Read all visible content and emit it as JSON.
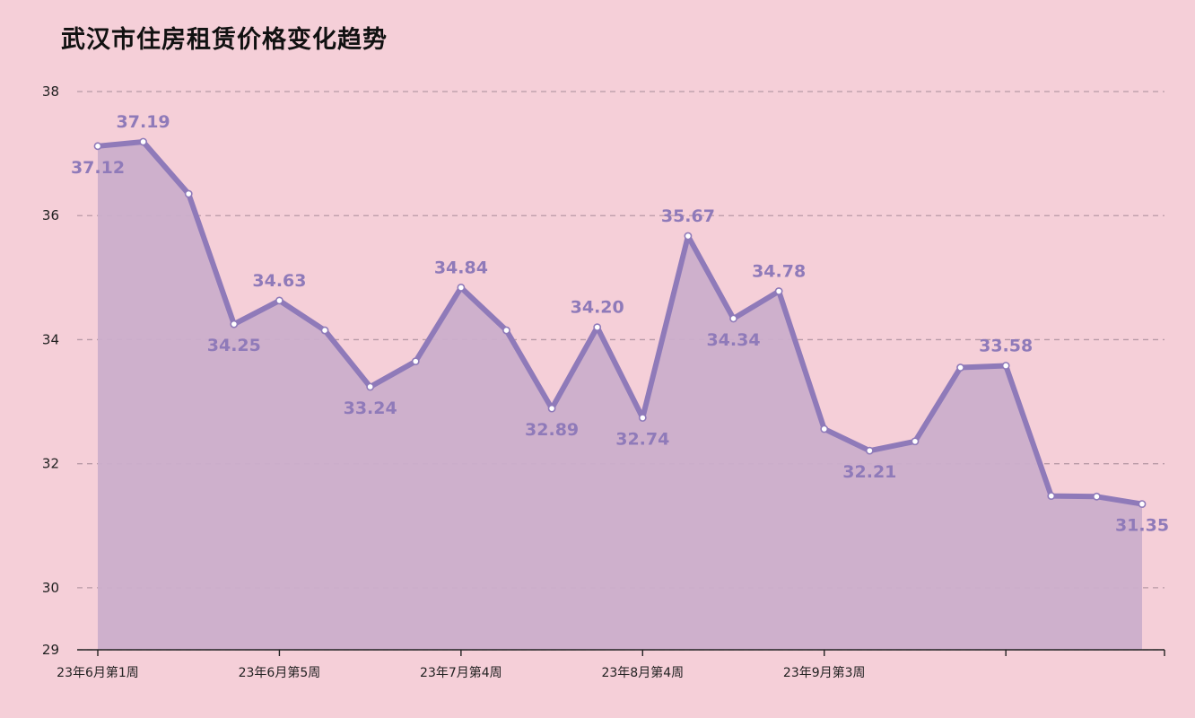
{
  "chart_data": {
    "type": "area",
    "title": "武汉市住房租赁价格变化趋势",
    "xlabel": "",
    "ylabel": "",
    "ylim": [
      29,
      38
    ],
    "y_ticks": [
      29,
      30,
      32,
      34,
      36,
      38
    ],
    "grid": true,
    "x_tick_labels": [
      "23年6月第1周",
      "23年6月第5周",
      "23年7月第4周",
      "23年8月第4周",
      "23年9月第3周"
    ],
    "x_tick_label_indices": [
      0,
      4,
      8,
      12,
      16
    ],
    "series": [
      {
        "values": [
          37.12,
          37.19,
          36.35,
          34.25,
          34.63,
          34.15,
          33.24,
          33.65,
          34.84,
          34.15,
          32.89,
          34.2,
          32.74,
          35.67,
          34.34,
          34.78,
          32.56,
          32.21,
          32.36,
          33.55,
          33.58,
          31.48,
          31.47,
          31.35
        ],
        "labeled_points": [
          {
            "index": 0,
            "text": "37.12",
            "placement": "below"
          },
          {
            "index": 1,
            "text": "37.19",
            "placement": "above"
          },
          {
            "index": 3,
            "text": "34.25",
            "placement": "below"
          },
          {
            "index": 4,
            "text": "34.63",
            "placement": "above"
          },
          {
            "index": 6,
            "text": "33.24",
            "placement": "below"
          },
          {
            "index": 8,
            "text": "34.84",
            "placement": "above"
          },
          {
            "index": 10,
            "text": "32.89",
            "placement": "below"
          },
          {
            "index": 11,
            "text": "34.20",
            "placement": "above"
          },
          {
            "index": 12,
            "text": "32.74",
            "placement": "below"
          },
          {
            "index": 13,
            "text": "35.67",
            "placement": "above"
          },
          {
            "index": 14,
            "text": "34.34",
            "placement": "below"
          },
          {
            "index": 15,
            "text": "34.78",
            "placement": "above"
          },
          {
            "index": 17,
            "text": "32.21",
            "placement": "below"
          },
          {
            "index": 20,
            "text": "33.58",
            "placement": "above"
          },
          {
            "index": 23,
            "text": "31.35",
            "placement": "below"
          }
        ]
      }
    ],
    "colors": {
      "background": "#f5cfd8",
      "line": "#8f7ab9",
      "fill": "#cbaecb",
      "label": "#8f7ab9",
      "grid": "#b89aa6",
      "axis": "#222222"
    }
  }
}
